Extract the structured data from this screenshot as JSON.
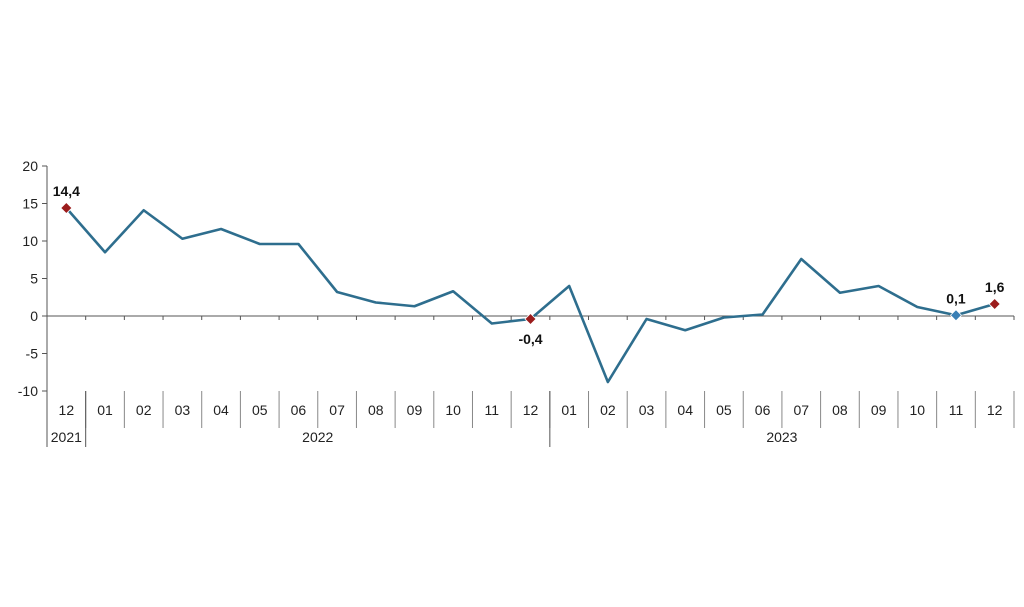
{
  "chart_data": {
    "type": "line",
    "title": "",
    "xlabel": "",
    "ylabel": "",
    "ylim": [
      -10,
      20
    ],
    "yticks": [
      20,
      15,
      10,
      5,
      0,
      -5,
      -10
    ],
    "grid": false,
    "legend": "none",
    "categories": [
      "12",
      "01",
      "02",
      "03",
      "04",
      "05",
      "06",
      "07",
      "08",
      "09",
      "10",
      "11",
      "12",
      "01",
      "02",
      "03",
      "04",
      "05",
      "06",
      "07",
      "08",
      "09",
      "10",
      "11",
      "12"
    ],
    "year_groups": [
      {
        "label": "2021",
        "start": 0,
        "end": 0
      },
      {
        "label": "2022",
        "start": 1,
        "end": 12
      },
      {
        "label": "2023",
        "start": 13,
        "end": 24
      }
    ],
    "series": [
      {
        "values": [
          14.4,
          8.5,
          14.1,
          10.3,
          11.6,
          9.6,
          9.6,
          3.2,
          1.8,
          1.3,
          3.3,
          -1.0,
          -0.4,
          4.0,
          -8.8,
          -0.4,
          -1.9,
          -0.2,
          0.2,
          7.6,
          3.1,
          4.0,
          1.2,
          0.1,
          1.6
        ],
        "color": "#2e6e8e"
      }
    ],
    "highlighted_points": [
      {
        "index": 0,
        "label": "14,4",
        "color": "#9b1c1c"
      },
      {
        "index": 12,
        "label": "-0,4",
        "color": "#9b1c1c"
      },
      {
        "index": 23,
        "label": "0,1",
        "color": "#3a7fb5"
      },
      {
        "index": 24,
        "label": "1,6",
        "color": "#9b1c1c"
      }
    ]
  }
}
